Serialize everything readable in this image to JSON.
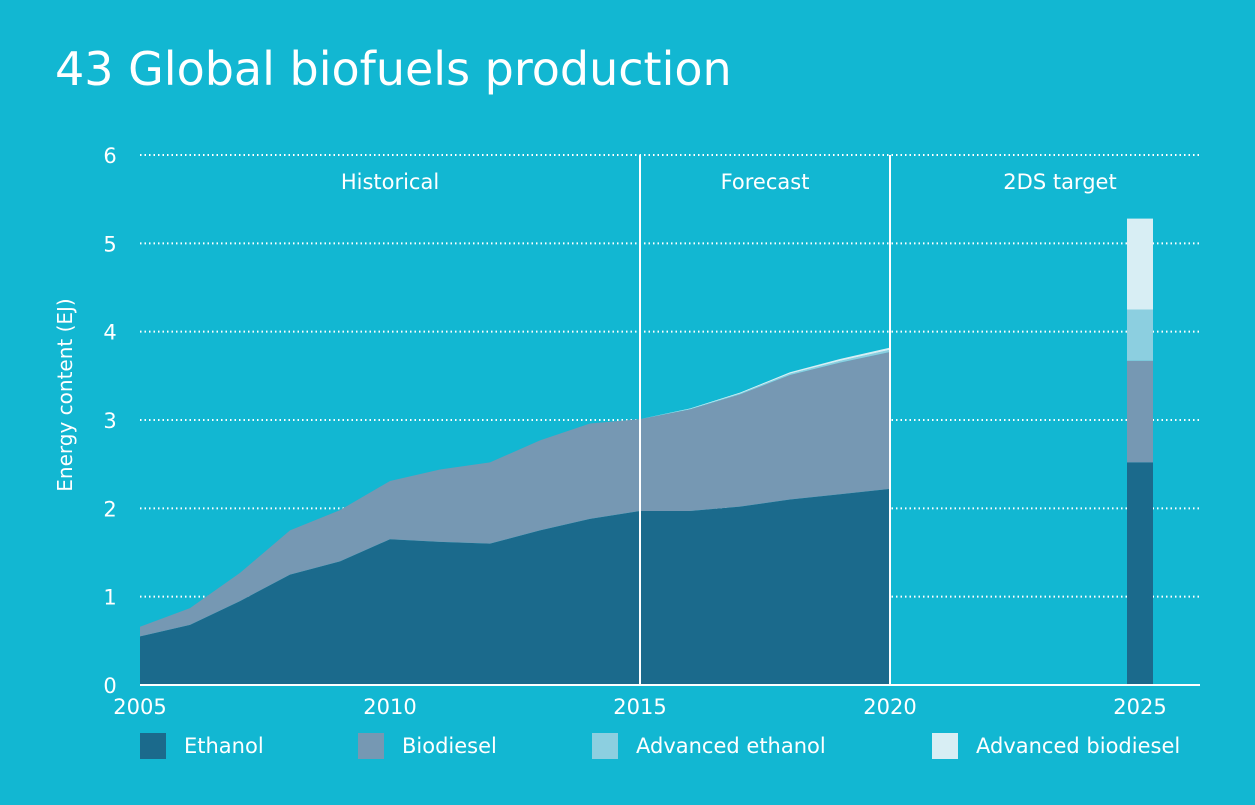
{
  "title": "43 Global biofuels production",
  "colors": {
    "background": "#12b7d2",
    "ethanol": "#1b6a8c",
    "biodiesel": "#7698b3",
    "advanced_ethanol": "#8ccfe0",
    "advanced_biodiesel": "#d8eef4",
    "grid": "#ffffff"
  },
  "chart_data": {
    "type": "area",
    "ylabel": "Energy content (EJ)",
    "xlabel": "",
    "ylim": [
      0,
      6
    ],
    "xlim": [
      2005,
      2026.2
    ],
    "yticks": [
      "0",
      "1",
      "2",
      "3",
      "4",
      "5",
      "6"
    ],
    "xticks": [
      "2005",
      "2010",
      "2015",
      "2020",
      "2025"
    ],
    "grid": "horizontal dotted",
    "sections": [
      {
        "label": "Historical"
      },
      {
        "label": "Forecast"
      },
      {
        "label": "2DS target"
      }
    ],
    "x": [
      2005,
      2006,
      2007,
      2008,
      2009,
      2010,
      2011,
      2012,
      2013,
      2014,
      2015,
      2016,
      2017,
      2018,
      2019,
      2020
    ],
    "series": [
      {
        "name": "Ethanol",
        "values": [
          0.55,
          0.68,
          0.95,
          1.25,
          1.4,
          1.65,
          1.62,
          1.6,
          1.75,
          1.88,
          1.97,
          1.97,
          2.02,
          2.1,
          2.16,
          2.22
        ]
      },
      {
        "name": "Biodiesel",
        "values": [
          0.11,
          0.19,
          0.32,
          0.5,
          0.58,
          0.66,
          0.82,
          0.92,
          1.02,
          1.08,
          1.04,
          1.15,
          1.27,
          1.41,
          1.49,
          1.55
        ]
      },
      {
        "name": "Advanced ethanol",
        "values": [
          0,
          0,
          0,
          0,
          0,
          0,
          0,
          0,
          0,
          0,
          0,
          0.005,
          0.01,
          0.015,
          0.02,
          0.025
        ]
      },
      {
        "name": "Advanced biodiesel",
        "values": [
          0,
          0,
          0,
          0,
          0,
          0,
          0,
          0,
          0,
          0,
          0,
          0.005,
          0.01,
          0.015,
          0.02,
          0.025
        ]
      }
    ],
    "target": {
      "x": 2025,
      "values": [
        {
          "name": "Ethanol",
          "value": 2.52
        },
        {
          "name": "Biodiesel",
          "value": 1.15
        },
        {
          "name": "Advanced ethanol",
          "value": 0.58
        },
        {
          "name": "Advanced biodiesel",
          "value": 1.03
        }
      ]
    },
    "legend": [
      {
        "name": "Ethanol"
      },
      {
        "name": "Biodiesel"
      },
      {
        "name": "Advanced ethanol"
      },
      {
        "name": "Advanced biodiesel"
      }
    ],
    "legend_position": "bottom"
  }
}
